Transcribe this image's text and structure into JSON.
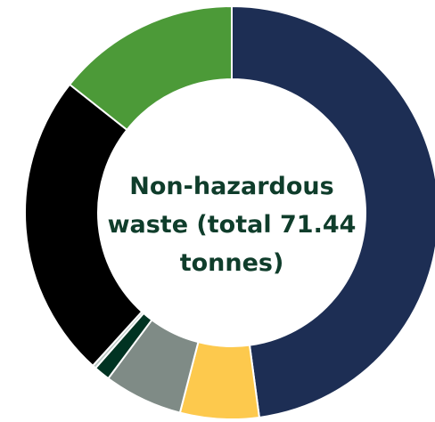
{
  "chart_data": {
    "type": "pie",
    "title_lines": [
      "Non-hazardous",
      "waste (total 71.44",
      "tonnes)"
    ],
    "slices": [
      {
        "value": 34.2,
        "color": "#1d2e54"
      },
      {
        "value": 4.4,
        "color": "#fdc94d"
      },
      {
        "value": 4.4,
        "color": "#7f8b86"
      },
      {
        "value": 0.9,
        "color": "#003322"
      },
      {
        "value": 0.2,
        "color": "#b9c7c3"
      },
      {
        "value": 17.1,
        "color": "#000000"
      },
      {
        "value": 10.24,
        "color": "#4c9a38"
      }
    ]
  }
}
